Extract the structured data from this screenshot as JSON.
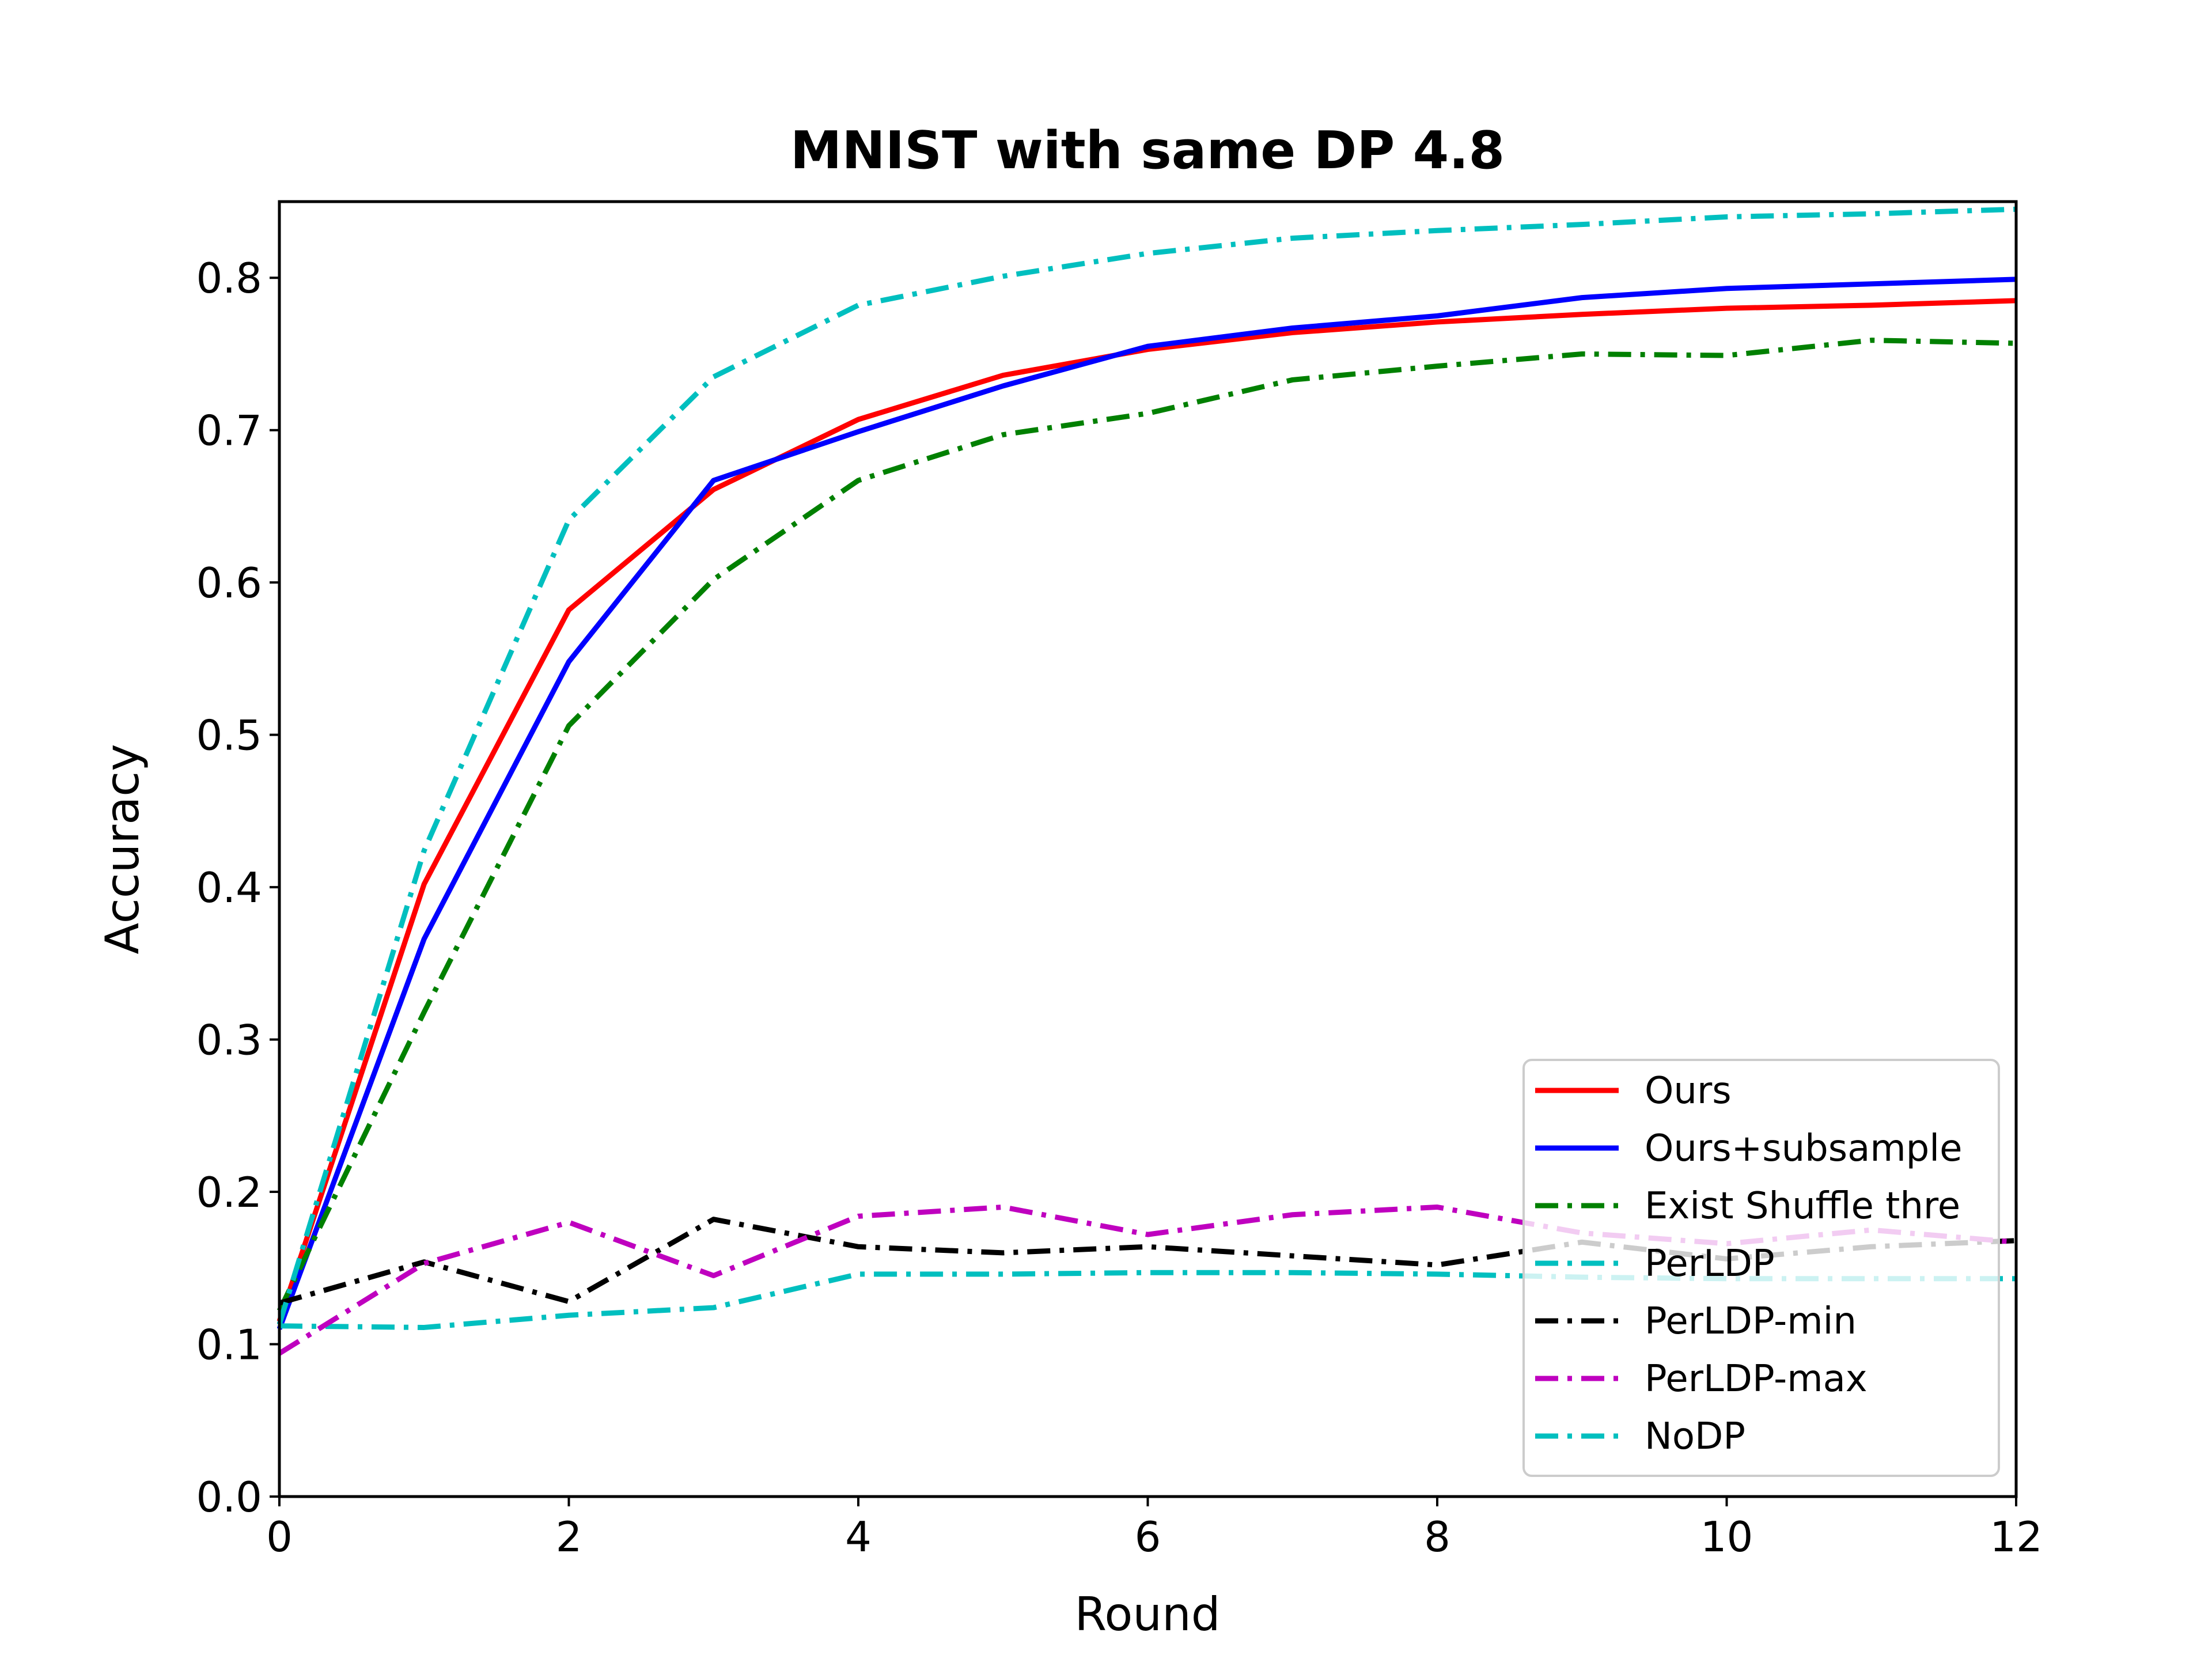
{
  "chart_data": {
    "type": "line",
    "title": "MNIST with same DP 4.8",
    "xlabel": "Round",
    "ylabel": "Accuracy",
    "xlim": [
      0,
      12
    ],
    "ylim": [
      0,
      0.85
    ],
    "xticks": [
      0,
      2,
      4,
      6,
      8,
      10,
      12
    ],
    "xtick_labels": [
      "0",
      "2",
      "4",
      "6",
      "8",
      "10",
      "12"
    ],
    "yticks": [
      0,
      0.1,
      0.2,
      0.3,
      0.4,
      0.5,
      0.6,
      0.7,
      0.8
    ],
    "ytick_labels": [
      "0.0",
      "0.1",
      "0.2",
      "0.3",
      "0.4",
      "0.5",
      "0.6",
      "0.7",
      "0.8"
    ],
    "grid": false,
    "legend_position": "lower-right",
    "x": [
      0,
      1,
      2,
      3,
      4,
      5,
      6,
      7,
      8,
      9,
      10,
      11,
      12
    ],
    "series": [
      {
        "name": "Ours",
        "color": "#ff0000",
        "style": "solid",
        "values": [
          0.115,
          0.402,
          0.582,
          0.661,
          0.707,
          0.736,
          0.753,
          0.764,
          0.771,
          0.776,
          0.78,
          0.782,
          0.785
        ]
      },
      {
        "name": "Ours+subsample",
        "color": "#0000ff",
        "style": "solid",
        "values": [
          0.11,
          0.366,
          0.548,
          0.667,
          0.699,
          0.729,
          0.755,
          0.767,
          0.775,
          0.787,
          0.793,
          0.796,
          0.799
        ]
      },
      {
        "name": "Exist Shuffle thre",
        "color": "#008000",
        "style": "dashdot",
        "values": [
          0.122,
          0.318,
          0.506,
          0.602,
          0.667,
          0.697,
          0.711,
          0.733,
          0.742,
          0.75,
          0.749,
          0.759,
          0.757
        ]
      },
      {
        "name": "PerLDP",
        "color": "#00bfbf",
        "style": "dashdot",
        "values": [
          0.112,
          0.111,
          0.119,
          0.124,
          0.146,
          0.146,
          0.147,
          0.147,
          0.146,
          0.144,
          0.143,
          0.143,
          0.143
        ]
      },
      {
        "name": "PerLDP-min",
        "color": "#000000",
        "style": "dashdot",
        "values": [
          0.127,
          0.154,
          0.128,
          0.182,
          0.164,
          0.16,
          0.164,
          0.158,
          0.152,
          0.167,
          0.156,
          0.164,
          0.168
        ]
      },
      {
        "name": "PerLDP-max",
        "color": "#bf00bf",
        "style": "dashdot",
        "values": [
          0.094,
          0.153,
          0.18,
          0.145,
          0.184,
          0.19,
          0.172,
          0.185,
          0.19,
          0.173,
          0.166,
          0.175,
          0.167
        ]
      },
      {
        "name": "NoDP",
        "color": "#00bfbf",
        "style": "dashdot",
        "values": [
          0.113,
          0.424,
          0.641,
          0.735,
          0.782,
          0.801,
          0.816,
          0.826,
          0.831,
          0.835,
          0.84,
          0.842,
          0.845
        ]
      }
    ]
  }
}
